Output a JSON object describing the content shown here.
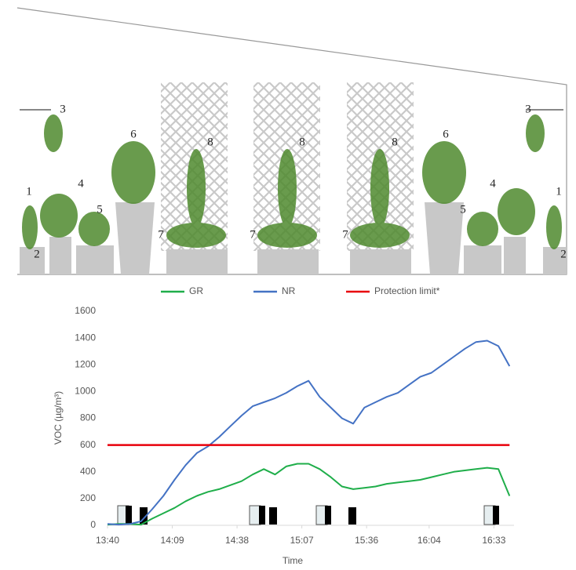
{
  "illustration": {
    "labels": [
      "1",
      "2",
      "3",
      "4",
      "5",
      "6",
      "7",
      "8",
      "7",
      "8",
      "7",
      "8",
      "6",
      "5",
      "4",
      "3",
      "2",
      "1"
    ]
  },
  "chart_data": {
    "type": "line",
    "y_label": "VOC (µg/m³)",
    "x_label": "Time",
    "x": [
      "13:40",
      "13:45",
      "13:50",
      "13:55",
      "14:00",
      "14:05",
      "14:10",
      "14:15",
      "14:20",
      "14:25",
      "14:30",
      "14:35",
      "14:40",
      "14:45",
      "14:50",
      "14:55",
      "15:00",
      "15:05",
      "15:10",
      "15:15",
      "15:20",
      "15:25",
      "15:30",
      "15:35",
      "15:40",
      "15:45",
      "15:50",
      "15:55",
      "16:00",
      "16:05",
      "16:10",
      "16:15",
      "16:20",
      "16:25",
      "16:30",
      "16:35",
      "16:40"
    ],
    "xlim": [
      "13:40",
      "16:42"
    ],
    "xticks": [
      "13:40",
      "14:09",
      "14:38",
      "15:07",
      "15:36",
      "16:04",
      "16:33"
    ],
    "ylim": [
      0,
      1600
    ],
    "yticks": [
      0,
      200,
      400,
      600,
      800,
      1000,
      1200,
      1400,
      1600
    ],
    "grid": false,
    "legend": "top",
    "series": [
      {
        "name": "GR",
        "color": "#1fae4a",
        "values": [
          5,
          10,
          10,
          5,
          50,
          90,
          130,
          180,
          220,
          250,
          270,
          300,
          330,
          380,
          420,
          380,
          440,
          460,
          460,
          420,
          360,
          290,
          270,
          280,
          290,
          310,
          320,
          330,
          340,
          360,
          380,
          400,
          410,
          420,
          430,
          420,
          220
        ]
      },
      {
        "name": "NR",
        "color": "#4472c4",
        "values": [
          10,
          5,
          10,
          30,
          120,
          220,
          340,
          450,
          540,
          590,
          660,
          740,
          820,
          890,
          920,
          950,
          990,
          1040,
          1080,
          960,
          880,
          800,
          760,
          880,
          920,
          960,
          990,
          1050,
          1110,
          1140,
          1200,
          1260,
          1320,
          1370,
          1380,
          1340,
          1190
        ]
      },
      {
        "name": "Protection limit*",
        "color": "#e8000b",
        "values": [
          600,
          600,
          600,
          600,
          600,
          600,
          600,
          600,
          600,
          600,
          600,
          600,
          600,
          600,
          600,
          600,
          600,
          600,
          600,
          600,
          600,
          600,
          600,
          600,
          600,
          600,
          600,
          600,
          600,
          600,
          600,
          600,
          600,
          600,
          600,
          600,
          600
        ]
      }
    ]
  }
}
